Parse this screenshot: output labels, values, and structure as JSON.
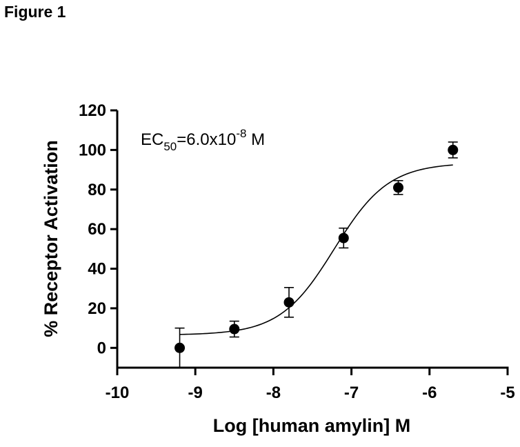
{
  "figure_label": "Figure 1",
  "chart_data": {
    "type": "scatter",
    "xlabel": "Log [human amylin] M",
    "ylabel": "% Receptor Activation",
    "xlim": [
      -10,
      -5
    ],
    "ylim": [
      -10,
      120
    ],
    "x_ticks": [
      -10,
      -9,
      -8,
      -7,
      -6,
      -5
    ],
    "y_ticks": [
      0,
      20,
      40,
      60,
      80,
      100,
      120
    ],
    "annotation": {
      "prefix": "EC",
      "subscript": "50",
      "value": "=6.0x10",
      "exponent": "-8",
      "unit": " M"
    },
    "points": [
      {
        "x": -9.2,
        "y": 0,
        "err": 10
      },
      {
        "x": -8.5,
        "y": 9.5,
        "err": 4
      },
      {
        "x": -7.8,
        "y": 23,
        "err": 7.5
      },
      {
        "x": -7.1,
        "y": 55.5,
        "err": 5
      },
      {
        "x": -6.4,
        "y": 81,
        "err": 3.5
      },
      {
        "x": -5.7,
        "y": 100,
        "err": 4
      }
    ],
    "fit": {
      "model": "sigmoidal dose-response",
      "bottom": 6.5,
      "top": 93.5,
      "log_ec50": -7.22,
      "hill_slope": 1.25,
      "x_range": [
        -9.2,
        -5.7
      ]
    },
    "grid": false,
    "legend": "none"
  }
}
